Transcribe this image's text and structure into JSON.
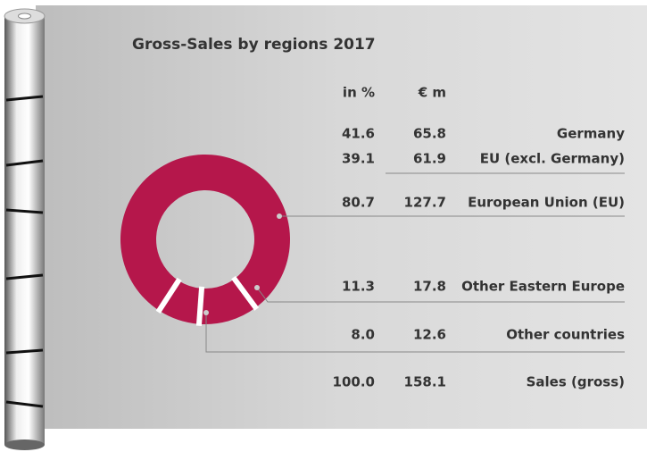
{
  "chart_data": {
    "type": "pie",
    "donut": true,
    "title": "Gross-Sales by regions 2017",
    "color": "#b5174b",
    "columns": [
      "in %",
      "€ m"
    ],
    "rows": [
      {
        "label": "Germany",
        "values": [
          41.6,
          65.8
        ],
        "value_labels": [
          "41.6",
          "65.8"
        ]
      },
      {
        "label": "EU (excl. Germany)",
        "values": [
          39.1,
          61.9
        ],
        "value_labels": [
          "39.1",
          "61.9"
        ]
      },
      {
        "label": "European Union (EU)",
        "values": [
          80.7,
          127.7
        ],
        "value_labels": [
          "80.7",
          "127.7"
        ]
      },
      {
        "label": "Other Eastern Europe",
        "values": [
          11.3,
          17.8
        ],
        "value_labels": [
          "11.3",
          "17.8"
        ]
      },
      {
        "label": "Other countries",
        "values": [
          8.0,
          12.6
        ],
        "value_labels": [
          "8.0",
          "12.6"
        ]
      },
      {
        "label": "Sales (gross)",
        "values": [
          100.0,
          158.1
        ],
        "value_labels": [
          "100.0",
          "158.1"
        ]
      }
    ]
  }
}
